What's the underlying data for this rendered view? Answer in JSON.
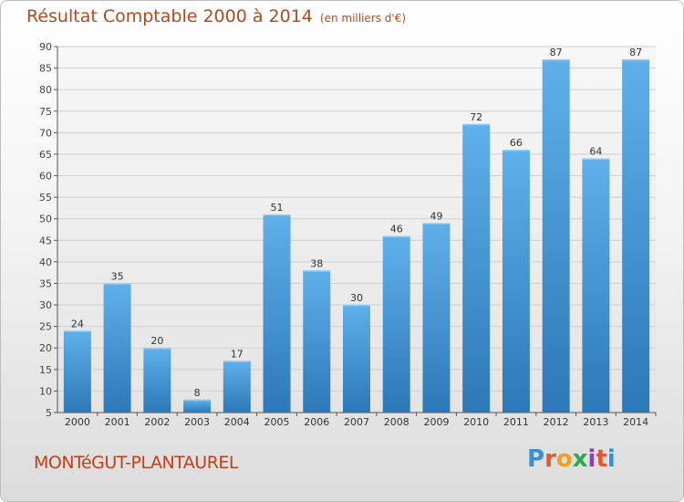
{
  "header": {
    "title": "Résultat Comptable 2000 à 2014",
    "subtitle": "(en milliers d'€)"
  },
  "footer": {
    "commune": "MONTéGUT-PLANTAUREL",
    "brand": "Proxiti",
    "brand_colors": [
      "#3a8fd4",
      "#e8562a",
      "#f2a01c",
      "#2fa84f",
      "#8e3fb4",
      "#e8562a",
      "#3a8fd4"
    ]
  },
  "chart_data": {
    "type": "bar",
    "categories": [
      "2000",
      "2001",
      "2002",
      "2003",
      "2004",
      "2005",
      "2006",
      "2007",
      "2008",
      "2009",
      "2010",
      "2011",
      "2012",
      "2013",
      "2014"
    ],
    "values": [
      24,
      35,
      20,
      8,
      17,
      51,
      38,
      30,
      46,
      49,
      72,
      66,
      87,
      64,
      87
    ],
    "ylim": [
      5,
      90
    ],
    "yticks": [
      5,
      10,
      15,
      20,
      25,
      30,
      35,
      40,
      45,
      50,
      55,
      60,
      65,
      70,
      75,
      80,
      85,
      90
    ],
    "grid": true,
    "bar_color_top": "#5fb0ea",
    "bar_color_bottom": "#2d78b8"
  }
}
